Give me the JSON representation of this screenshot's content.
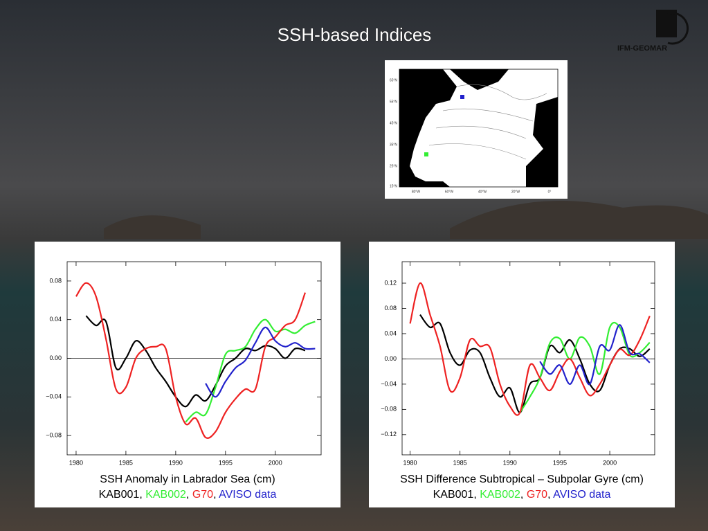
{
  "title": "SSH-based Indices",
  "logo": "IFM-GEOMAR",
  "map": {
    "lat_labels": [
      "65°N",
      "55°N",
      "45°N",
      "35°N",
      "25°N",
      "15°N"
    ],
    "lon_labels": [
      "80°W",
      "60°W",
      "40°W",
      "20°W",
      "0°"
    ]
  },
  "chart_data": [
    {
      "type": "line",
      "caption": "SSH Anomaly in Labrador Sea (cm)",
      "legend_separator": ", ",
      "x": [
        1980,
        1981,
        1982,
        1983,
        1984,
        1985,
        1986,
        1987,
        1988,
        1989,
        1990,
        1991,
        1992,
        1993,
        1994,
        1995,
        1996,
        1997,
        1998,
        1999,
        2000,
        2001,
        2002,
        2003,
        2004
      ],
      "xlim": [
        1979.1,
        2004.6
      ],
      "xticks": [
        1980,
        1985,
        1990,
        1995,
        2000
      ],
      "ylim": [
        -0.1,
        0.1
      ],
      "yticks": [
        {
          "value": -0.08,
          "label": "−0.08"
        },
        {
          "value": -0.04,
          "label": "−0.04"
        },
        {
          "value": 0,
          "label": "0.00"
        },
        0.04,
        0.08
      ],
      "zero_line": true,
      "series": [
        {
          "name": "KAB001",
          "color": "#000000",
          "values": [
            null,
            0.044,
            0.034,
            0.038,
            -0.01,
            0.0,
            0.018,
            0.008,
            -0.01,
            -0.024,
            -0.04,
            -0.05,
            -0.038,
            -0.044,
            -0.028,
            -0.008,
            0.0,
            0.01,
            0.008,
            0.013,
            0.01,
            0.0,
            0.01,
            0.008,
            null
          ]
        },
        {
          "name": "KAB002",
          "color": "#33ee33",
          "values": [
            null,
            null,
            null,
            null,
            null,
            null,
            null,
            null,
            null,
            null,
            null,
            -0.066,
            -0.056,
            -0.058,
            -0.03,
            0.004,
            0.008,
            0.012,
            0.03,
            0.04,
            0.028,
            0.03,
            0.026,
            0.034,
            0.038
          ]
        },
        {
          "name": "G70",
          "color": "#ee2222",
          "values": [
            0.064,
            0.078,
            0.064,
            0.02,
            -0.032,
            -0.03,
            0.0,
            0.01,
            0.012,
            0.01,
            -0.04,
            -0.068,
            -0.062,
            -0.082,
            -0.076,
            -0.056,
            -0.042,
            -0.032,
            -0.032,
            0.012,
            0.022,
            0.034,
            0.04,
            0.068,
            null
          ]
        },
        {
          "name": "AVISO data",
          "color": "#2222cc",
          "values": [
            null,
            null,
            null,
            null,
            null,
            null,
            null,
            null,
            null,
            null,
            null,
            null,
            null,
            -0.026,
            -0.04,
            -0.024,
            -0.01,
            -0.002,
            0.016,
            0.032,
            0.018,
            0.012,
            0.016,
            0.01,
            0.01
          ]
        }
      ]
    },
    {
      "type": "line",
      "caption": "SSH Difference Subtropical – Subpolar Gyre (cm)",
      "legend_separator": ", ",
      "x": [
        1980,
        1981,
        1982,
        1983,
        1984,
        1985,
        1986,
        1987,
        1988,
        1989,
        1990,
        1991,
        1992,
        1993,
        1994,
        1995,
        1996,
        1997,
        1998,
        1999,
        2000,
        2001,
        2002,
        2003,
        2004
      ],
      "xlim": [
        1979.2,
        2004.5
      ],
      "xticks": [
        1980,
        1985,
        1990,
        1995,
        2000
      ],
      "ylim": [
        -0.152,
        0.154
      ],
      "yticks": [
        {
          "value": -0.12,
          "label": "−0.12"
        },
        {
          "value": -0.08,
          "label": "−0.08"
        },
        {
          "value": -0.04,
          "label": "−0.04"
        },
        {
          "value": 0,
          "label": "0.00"
        },
        0.04,
        0.08,
        0.12
      ],
      "zero_line": true,
      "series": [
        {
          "name": "KAB001",
          "color": "#000000",
          "values": [
            null,
            0.07,
            0.05,
            0.056,
            0.01,
            -0.01,
            0.014,
            0.01,
            -0.03,
            -0.06,
            -0.046,
            -0.085,
            -0.04,
            -0.03,
            0.02,
            0.01,
            0.03,
            0.0,
            -0.04,
            -0.05,
            -0.01,
            0.016,
            0.016,
            0.004,
            0.016
          ]
        },
        {
          "name": "KAB002",
          "color": "#33ee33",
          "values": [
            null,
            null,
            null,
            null,
            null,
            null,
            null,
            null,
            null,
            null,
            null,
            -0.085,
            -0.06,
            -0.03,
            0.025,
            0.032,
            0.0,
            0.034,
            0.02,
            -0.024,
            0.05,
            0.05,
            0.006,
            0.01,
            0.026
          ]
        },
        {
          "name": "G70",
          "color": "#ee2222",
          "values": [
            0.056,
            0.12,
            0.07,
            0.02,
            -0.05,
            -0.03,
            0.03,
            0.02,
            0.018,
            -0.04,
            -0.075,
            -0.085,
            -0.01,
            -0.03,
            -0.05,
            -0.02,
            0.0,
            -0.03,
            -0.058,
            -0.04,
            -0.01,
            0.015,
            0.006,
            0.03,
            0.068
          ]
        },
        {
          "name": "AVISO data",
          "color": "#2222cc",
          "values": [
            null,
            null,
            null,
            null,
            null,
            null,
            null,
            null,
            null,
            null,
            null,
            null,
            null,
            -0.004,
            -0.024,
            -0.01,
            -0.04,
            -0.01,
            -0.04,
            0.02,
            0.014,
            0.054,
            0.01,
            0.008,
            -0.006
          ]
        }
      ]
    }
  ]
}
